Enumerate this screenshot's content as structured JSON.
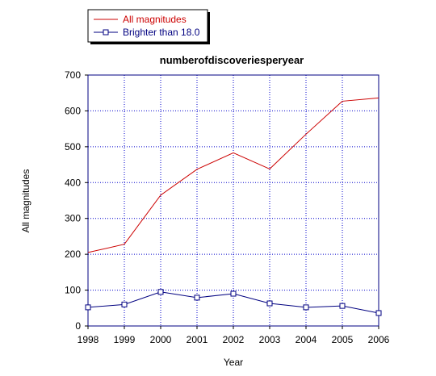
{
  "chart_data": {
    "type": "line",
    "title": "numberofdiscoveriesperyear",
    "xlabel": "Year",
    "ylabel": "All magnitudes",
    "x": [
      1998,
      1999,
      2000,
      2001,
      2002,
      2003,
      2004,
      2005,
      2006
    ],
    "xlim": [
      1998,
      2006
    ],
    "ylim": [
      0,
      700
    ],
    "yticks": [
      0,
      100,
      200,
      300,
      400,
      500,
      600,
      700
    ],
    "grid": true,
    "legend_position": "top-left",
    "series": [
      {
        "name": "All magnitudes",
        "color": "#cc0000",
        "marker": "none",
        "values": [
          205,
          228,
          365,
          437,
          483,
          438,
          535,
          627,
          636
        ]
      },
      {
        "name": "Brighter than 18.0",
        "color": "#000080",
        "marker": "square",
        "values": [
          52,
          60,
          95,
          79,
          90,
          63,
          52,
          56,
          36
        ]
      }
    ]
  }
}
